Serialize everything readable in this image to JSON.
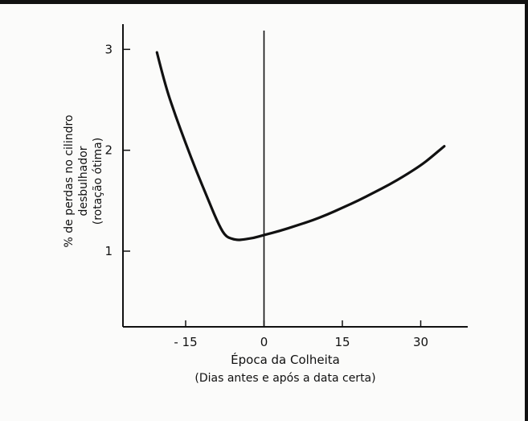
{
  "chart_data": {
    "type": "line",
    "xlabel": "Época da Colheita",
    "xlabel_sub": "(Dias antes e após a data certa)",
    "ylabel_lines": [
      "% de perdas no cilindro",
      "desbulhador",
      "(rotação ótima)"
    ],
    "x_ticks": [
      -15,
      0,
      15,
      30
    ],
    "x_tick_labels": [
      "- 15",
      "0",
      "15",
      "30"
    ],
    "y_ticks": [
      1,
      2,
      3
    ],
    "y_tick_labels": [
      "1",
      "2",
      "3"
    ],
    "xlim": [
      -27,
      39
    ],
    "ylim": [
      0.25,
      3.25
    ],
    "reference_line_x": 0,
    "series": [
      {
        "x": [
          -20.5,
          -19,
          -17,
          -15,
          -13,
          -11,
          -9,
          -7.5,
          -6,
          -5,
          -4,
          -2,
          0,
          3,
          6,
          9,
          12,
          15,
          18,
          21,
          24,
          27,
          30,
          32,
          34.5
        ],
        "y": [
          2.97,
          2.66,
          2.35,
          2.07,
          1.8,
          1.55,
          1.3,
          1.15,
          1.12,
          1.11,
          1.115,
          1.13,
          1.16,
          1.2,
          1.25,
          1.3,
          1.36,
          1.43,
          1.5,
          1.58,
          1.66,
          1.75,
          1.85,
          1.93,
          2.04
        ]
      }
    ]
  }
}
